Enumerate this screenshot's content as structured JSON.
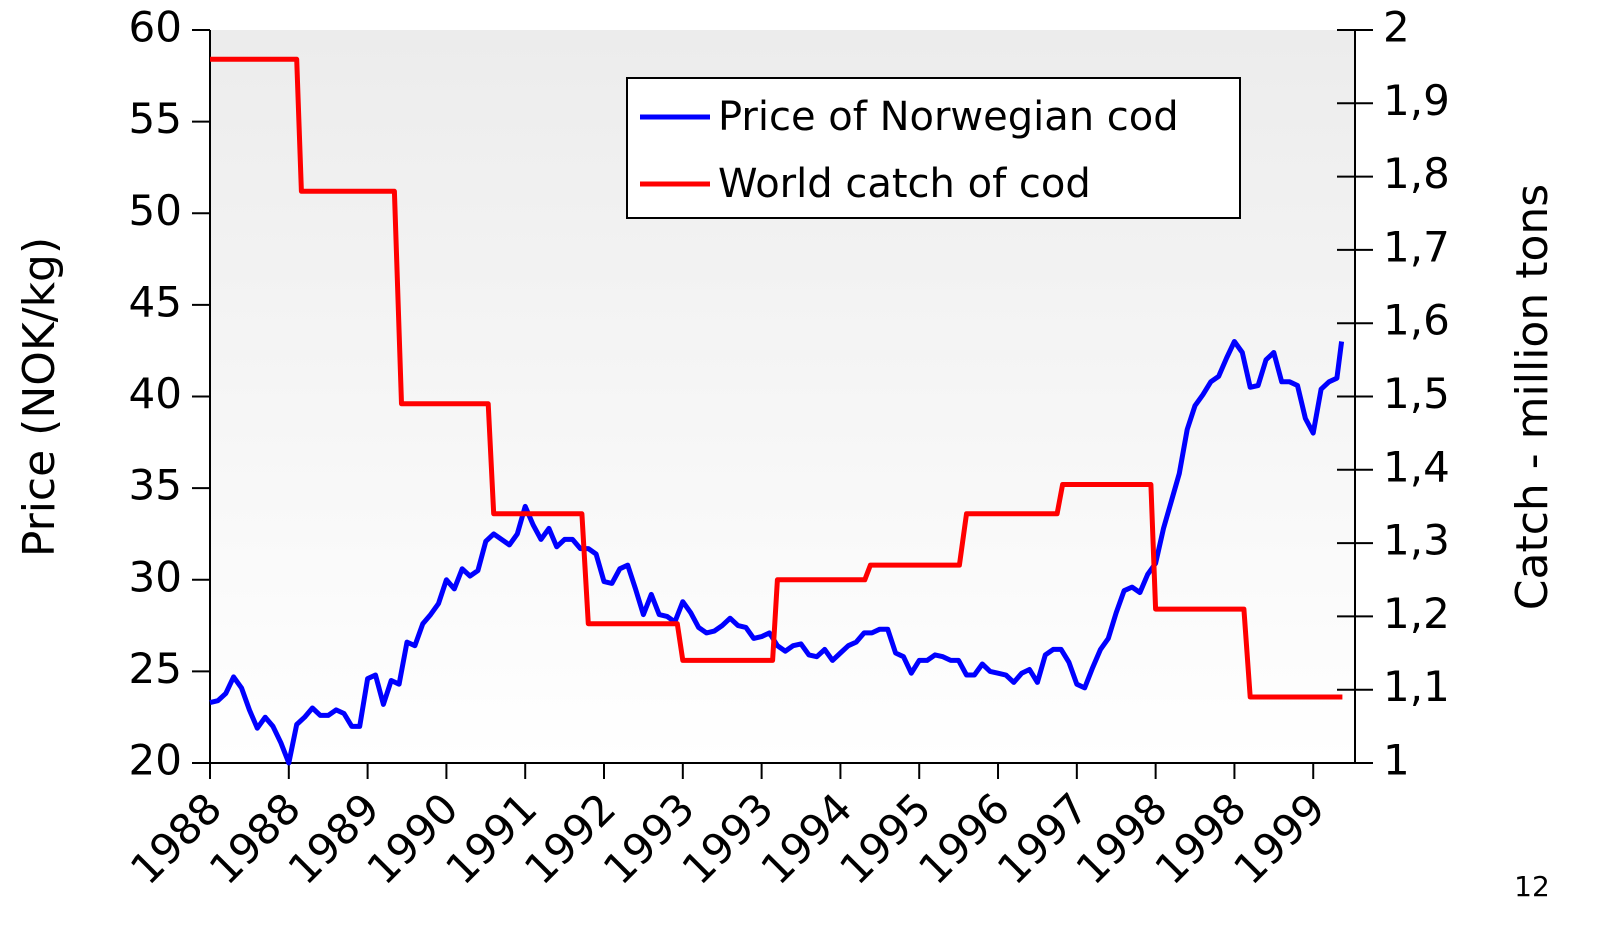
{
  "chart_data": {
    "type": "line",
    "ylabel": "Price (NOK/kg)",
    "y2label": "Catch - million tons",
    "annotation": "12",
    "xlim": [
      0,
      145.3
    ],
    "xticks": [
      {
        "value": 0,
        "label": "1988"
      },
      {
        "value": 10,
        "label": "1988"
      },
      {
        "value": 20,
        "label": "1989"
      },
      {
        "value": 30,
        "label": "1990"
      },
      {
        "value": 40,
        "label": "1991"
      },
      {
        "value": 50,
        "label": "1992"
      },
      {
        "value": 60,
        "label": "1993"
      },
      {
        "value": 70,
        "label": "1993"
      },
      {
        "value": 80,
        "label": "1994"
      },
      {
        "value": 90,
        "label": "1995"
      },
      {
        "value": 100,
        "label": "1996"
      },
      {
        "value": 110,
        "label": "1997"
      },
      {
        "value": 120,
        "label": "1998"
      },
      {
        "value": 130,
        "label": "1998"
      },
      {
        "value": 140,
        "label": "1999"
      }
    ],
    "ylim": [
      20,
      60
    ],
    "yticks": [
      20,
      25,
      30,
      35,
      40,
      45,
      50,
      55,
      60
    ],
    "y2lim": [
      1,
      2
    ],
    "y2ticks": [
      1,
      {
        "value": 1.1,
        "label": "1,1"
      },
      {
        "value": 1.2,
        "label": "1,2"
      },
      {
        "value": 1.3,
        "label": "1,3"
      },
      {
        "value": 1.4,
        "label": "1,4"
      },
      {
        "value": 1.5,
        "label": "1,5"
      },
      {
        "value": 1.6,
        "label": "1,6"
      },
      {
        "value": 1.7,
        "label": "1,7"
      },
      {
        "value": 1.8,
        "label": "1,8"
      },
      {
        "value": 1.9,
        "label": "1,9"
      },
      2
    ],
    "legend": "upper center",
    "series": [
      {
        "name": "Price of Norwegian cod",
        "color": "#0000ff",
        "axis": "y",
        "x": [
          0,
          1,
          2,
          3,
          4,
          5,
          6,
          7,
          8,
          9,
          10,
          11,
          12,
          13,
          14,
          15,
          16,
          17,
          18,
          19,
          20,
          21,
          22,
          23,
          24,
          25,
          26,
          27,
          28,
          29,
          30,
          31,
          32,
          33,
          34,
          35,
          36,
          37,
          38,
          39,
          40,
          41,
          42,
          43,
          44,
          45,
          46,
          47,
          48,
          49,
          50,
          51,
          52,
          53,
          54,
          55,
          56,
          57,
          58,
          59,
          60,
          61,
          62,
          63,
          64,
          65,
          66,
          67,
          68,
          69,
          70,
          71,
          72,
          73,
          74,
          75,
          76,
          77,
          78,
          79,
          80,
          81,
          82,
          83,
          84,
          85,
          86,
          87,
          88,
          89,
          90,
          91,
          92,
          93,
          94,
          95,
          96,
          97,
          98,
          99,
          100,
          101,
          102,
          103,
          104,
          105,
          106,
          107,
          108,
          109,
          110,
          111,
          112,
          113,
          114,
          115,
          116,
          117,
          118,
          119,
          120,
          121,
          122,
          123,
          124,
          125,
          126,
          127,
          128,
          129,
          130,
          131,
          132,
          133,
          134,
          135,
          136,
          137,
          138,
          139,
          140,
          141,
          142,
          143,
          143.6
        ],
        "values": [
          23.3,
          23.4,
          23.8,
          24.7,
          24.1,
          22.9,
          21.9,
          22.5,
          22.0,
          21.1,
          20.0,
          22.1,
          22.5,
          23.0,
          22.6,
          22.6,
          22.9,
          22.7,
          22.0,
          22.0,
          24.6,
          24.8,
          23.2,
          24.5,
          24.3,
          26.6,
          26.4,
          27.6,
          28.1,
          28.7,
          30.0,
          29.5,
          30.6,
          30.2,
          30.5,
          32.1,
          32.5,
          32.2,
          31.9,
          32.5,
          34.0,
          33.0,
          32.2,
          32.8,
          31.8,
          32.2,
          32.2,
          31.7,
          31.7,
          31.4,
          29.9,
          29.8,
          30.6,
          30.8,
          29.5,
          28.1,
          29.2,
          28.1,
          28.0,
          27.7,
          28.8,
          28.2,
          27.4,
          27.1,
          27.2,
          27.5,
          27.9,
          27.5,
          27.4,
          26.8,
          26.9,
          27.1,
          26.4,
          26.1,
          26.4,
          26.5,
          25.9,
          25.8,
          26.2,
          25.6,
          26.0,
          26.4,
          26.6,
          27.1,
          27.1,
          27.3,
          27.3,
          26.0,
          25.8,
          24.9,
          25.6,
          25.6,
          25.9,
          25.8,
          25.6,
          25.6,
          24.8,
          24.8,
          25.4,
          25.0,
          24.9,
          24.8,
          24.4,
          24.9,
          25.1,
          24.4,
          25.9,
          26.2,
          26.2,
          25.5,
          24.3,
          24.1,
          25.2,
          26.2,
          26.8,
          28.2,
          29.4,
          29.6,
          29.3,
          30.3,
          30.9,
          32.8,
          34.3,
          35.8,
          38.2,
          39.5,
          40.1,
          40.8,
          41.1,
          42.1,
          43.0,
          42.4,
          40.5,
          40.6,
          42.0,
          42.4,
          40.8,
          40.8,
          40.6,
          38.8,
          38.0,
          40.4,
          40.8,
          41.0,
          43.0
        ]
      },
      {
        "name": "World catch of cod",
        "color": "#ff0000",
        "axis": "y2",
        "x": [
          0,
          11.0,
          11.6,
          23.4,
          24.3,
          35.3,
          36.0,
          47.2,
          48.0,
          59.3,
          60.0,
          71.4,
          72.0,
          83.1,
          83.8,
          95.1,
          96.0,
          107.5,
          108.2,
          119.4,
          120.0,
          131.2,
          132.0,
          143.7
        ],
        "values": [
          1.96,
          1.96,
          1.78,
          1.78,
          1.49,
          1.49,
          1.34,
          1.34,
          1.19,
          1.19,
          1.14,
          1.14,
          1.25,
          1.25,
          1.27,
          1.27,
          1.34,
          1.34,
          1.38,
          1.38,
          1.21,
          1.21,
          1.09,
          1.09
        ]
      }
    ]
  }
}
